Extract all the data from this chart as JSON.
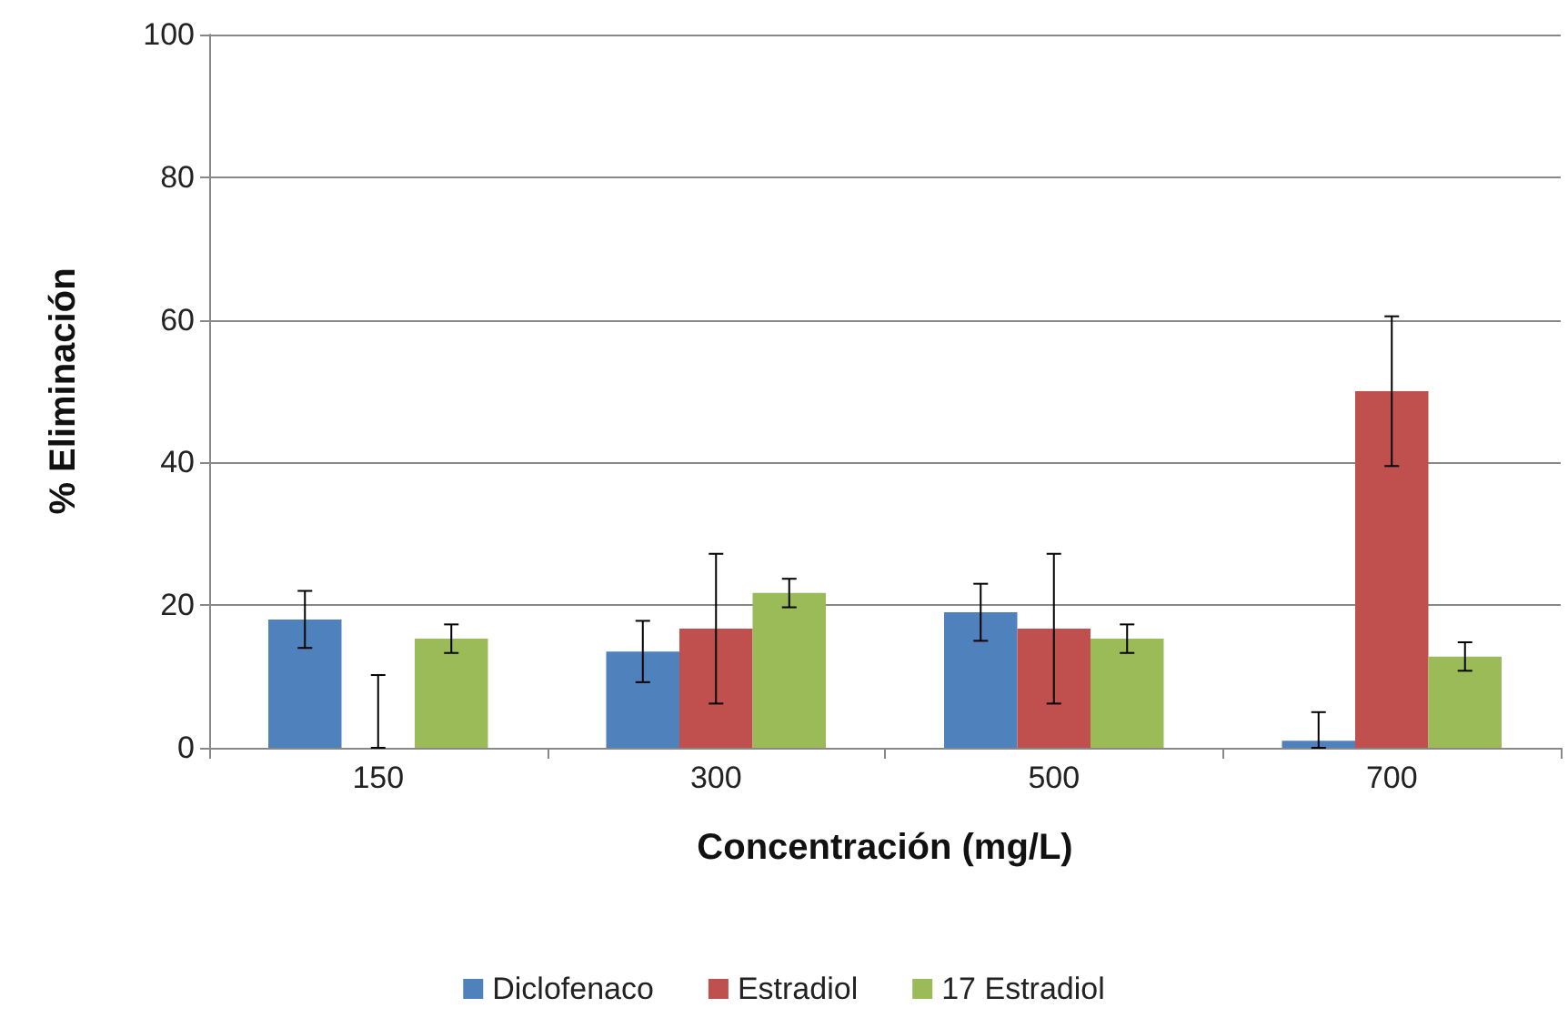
{
  "chart_data": {
    "type": "bar",
    "xlabel": "Concentración (mg/L)",
    "ylabel": "% Eliminación",
    "categories": [
      "150",
      "300",
      "500",
      "700"
    ],
    "series": [
      {
        "name": "Diclofenaco",
        "color": "#4f81bd",
        "values": [
          18,
          13.5,
          19,
          1
        ],
        "errors": [
          4,
          4.3,
          4,
          [
            0,
            5
          ]
        ]
      },
      {
        "name": "Estradiol",
        "color": "#c0504d",
        "values": [
          0,
          16.7,
          16.7,
          50
        ],
        "errors": [
          [
            0,
            10.2
          ],
          10.5,
          10.5,
          10.5
        ]
      },
      {
        "name": "17 Estradiol",
        "color": "#9bbb59",
        "values": [
          15.3,
          21.7,
          15.3,
          12.8
        ],
        "errors": [
          2,
          2,
          2,
          2
        ]
      }
    ],
    "ylim": [
      0,
      100
    ],
    "yticks": [
      0,
      20,
      40,
      60,
      80,
      100
    ],
    "grid": "y",
    "legend": "bottom"
  }
}
